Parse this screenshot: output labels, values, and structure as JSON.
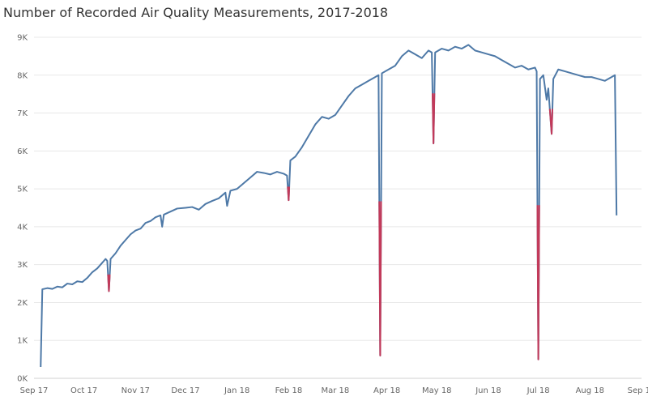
{
  "chart_data": {
    "type": "line",
    "title": "Number of Recorded Air Quality Measurements, 2017-2018",
    "xlabel": "",
    "ylabel": "",
    "ylim": [
      0,
      9000
    ],
    "xlim": [
      "2017-09-01",
      "2018-09-01"
    ],
    "grid": true,
    "legend": "none",
    "y_ticks": [
      {
        "value": 0,
        "label": "0K"
      },
      {
        "value": 1000,
        "label": "1K"
      },
      {
        "value": 2000,
        "label": "2K"
      },
      {
        "value": 3000,
        "label": "3K"
      },
      {
        "value": 4000,
        "label": "4K"
      },
      {
        "value": 5000,
        "label": "5K"
      },
      {
        "value": 6000,
        "label": "6K"
      },
      {
        "value": 7000,
        "label": "7K"
      },
      {
        "value": 8000,
        "label": "8K"
      },
      {
        "value": 9000,
        "label": "9K"
      }
    ],
    "x_ticks": [
      {
        "date": "2017-09-01",
        "label": "Sep 17"
      },
      {
        "date": "2017-10-01",
        "label": "Oct 17"
      },
      {
        "date": "2017-11-01",
        "label": "Nov 17"
      },
      {
        "date": "2017-12-01",
        "label": "Dec 17"
      },
      {
        "date": "2018-01-01",
        "label": "Jan 18"
      },
      {
        "date": "2018-02-01",
        "label": "Feb 18"
      },
      {
        "date": "2018-03-01",
        "label": "Mar 18"
      },
      {
        "date": "2018-04-01",
        "label": "Apr 18"
      },
      {
        "date": "2018-05-01",
        "label": "May 18"
      },
      {
        "date": "2018-06-01",
        "label": "Jun 18"
      },
      {
        "date": "2018-07-01",
        "label": "Jul 18"
      },
      {
        "date": "2018-08-01",
        "label": "Aug 18"
      },
      {
        "date": "2018-09-01",
        "label": "Sep 18"
      }
    ],
    "line_color": "#4e79a7",
    "dip_color": "#c23a5a",
    "series": [
      {
        "points": [
          [
            "2017-09-05",
            300
          ],
          [
            "2017-09-06",
            2350
          ],
          [
            "2017-09-09",
            2380
          ],
          [
            "2017-09-12",
            2360
          ],
          [
            "2017-09-15",
            2420
          ],
          [
            "2017-09-18",
            2400
          ],
          [
            "2017-09-21",
            2500
          ],
          [
            "2017-09-24",
            2480
          ],
          [
            "2017-09-27",
            2560
          ],
          [
            "2017-09-30",
            2540
          ],
          [
            "2017-10-03",
            2650
          ],
          [
            "2017-10-06",
            2800
          ],
          [
            "2017-10-09",
            2900
          ],
          [
            "2017-10-12",
            3050
          ],
          [
            "2017-10-14",
            3150
          ],
          [
            "2017-10-15",
            3100
          ],
          [
            "2017-10-16",
            2300
          ],
          [
            "2017-10-17",
            3150
          ],
          [
            "2017-10-20",
            3300
          ],
          [
            "2017-10-23",
            3500
          ],
          [
            "2017-10-26",
            3650
          ],
          [
            "2017-10-29",
            3800
          ],
          [
            "2017-11-01",
            3900
          ],
          [
            "2017-11-04",
            3950
          ],
          [
            "2017-11-07",
            4100
          ],
          [
            "2017-11-10",
            4150
          ],
          [
            "2017-11-13",
            4250
          ],
          [
            "2017-11-16",
            4300
          ],
          [
            "2017-11-17",
            4000
          ],
          [
            "2017-11-18",
            4320
          ],
          [
            "2017-11-22",
            4400
          ],
          [
            "2017-11-26",
            4480
          ],
          [
            "2017-12-01",
            4500
          ],
          [
            "2017-12-05",
            4520
          ],
          [
            "2017-12-09",
            4450
          ],
          [
            "2017-12-13",
            4600
          ],
          [
            "2017-12-17",
            4680
          ],
          [
            "2017-12-21",
            4750
          ],
          [
            "2017-12-25",
            4900
          ],
          [
            "2017-12-26",
            4550
          ],
          [
            "2017-12-28",
            4950
          ],
          [
            "2018-01-01",
            5000
          ],
          [
            "2018-01-05",
            5150
          ],
          [
            "2018-01-09",
            5300
          ],
          [
            "2018-01-13",
            5450
          ],
          [
            "2018-01-17",
            5420
          ],
          [
            "2018-01-21",
            5380
          ],
          [
            "2018-01-25",
            5450
          ],
          [
            "2018-01-29",
            5400
          ],
          [
            "2018-01-31",
            5350
          ],
          [
            "2018-02-01",
            4700
          ],
          [
            "2018-02-02",
            5750
          ],
          [
            "2018-02-05",
            5850
          ],
          [
            "2018-02-09",
            6100
          ],
          [
            "2018-02-13",
            6400
          ],
          [
            "2018-02-17",
            6700
          ],
          [
            "2018-02-21",
            6900
          ],
          [
            "2018-02-25",
            6850
          ],
          [
            "2018-03-01",
            6950
          ],
          [
            "2018-03-05",
            7200
          ],
          [
            "2018-03-09",
            7450
          ],
          [
            "2018-03-13",
            7650
          ],
          [
            "2018-03-17",
            7750
          ],
          [
            "2018-03-21",
            7850
          ],
          [
            "2018-03-25",
            7950
          ],
          [
            "2018-03-27",
            8000
          ],
          [
            "2018-03-28",
            600
          ],
          [
            "2018-03-29",
            8050
          ],
          [
            "2018-04-02",
            8150
          ],
          [
            "2018-04-06",
            8250
          ],
          [
            "2018-04-10",
            8500
          ],
          [
            "2018-04-14",
            8650
          ],
          [
            "2018-04-18",
            8550
          ],
          [
            "2018-04-22",
            8450
          ],
          [
            "2018-04-26",
            8650
          ],
          [
            "2018-04-28",
            8600
          ],
          [
            "2018-04-29",
            6200
          ],
          [
            "2018-04-30",
            8600
          ],
          [
            "2018-05-04",
            8700
          ],
          [
            "2018-05-08",
            8650
          ],
          [
            "2018-05-12",
            8750
          ],
          [
            "2018-05-16",
            8700
          ],
          [
            "2018-05-20",
            8800
          ],
          [
            "2018-05-24",
            8650
          ],
          [
            "2018-05-28",
            8600
          ],
          [
            "2018-06-01",
            8550
          ],
          [
            "2018-06-05",
            8500
          ],
          [
            "2018-06-09",
            8400
          ],
          [
            "2018-06-13",
            8300
          ],
          [
            "2018-06-17",
            8200
          ],
          [
            "2018-06-21",
            8250
          ],
          [
            "2018-06-25",
            8150
          ],
          [
            "2018-06-29",
            8200
          ],
          [
            "2018-06-30",
            8100
          ],
          [
            "2018-07-01",
            500
          ],
          [
            "2018-07-02",
            7900
          ],
          [
            "2018-07-04",
            8000
          ],
          [
            "2018-07-06",
            7350
          ],
          [
            "2018-07-07",
            7650
          ],
          [
            "2018-07-09",
            6450
          ],
          [
            "2018-07-10",
            7900
          ],
          [
            "2018-07-13",
            8150
          ],
          [
            "2018-07-17",
            8100
          ],
          [
            "2018-07-21",
            8050
          ],
          [
            "2018-07-25",
            8000
          ],
          [
            "2018-07-29",
            7950
          ],
          [
            "2018-08-02",
            7950
          ],
          [
            "2018-08-06",
            7900
          ],
          [
            "2018-08-10",
            7850
          ],
          [
            "2018-08-14",
            7950
          ],
          [
            "2018-08-16",
            8000
          ],
          [
            "2018-08-17",
            4300
          ]
        ]
      }
    ]
  }
}
